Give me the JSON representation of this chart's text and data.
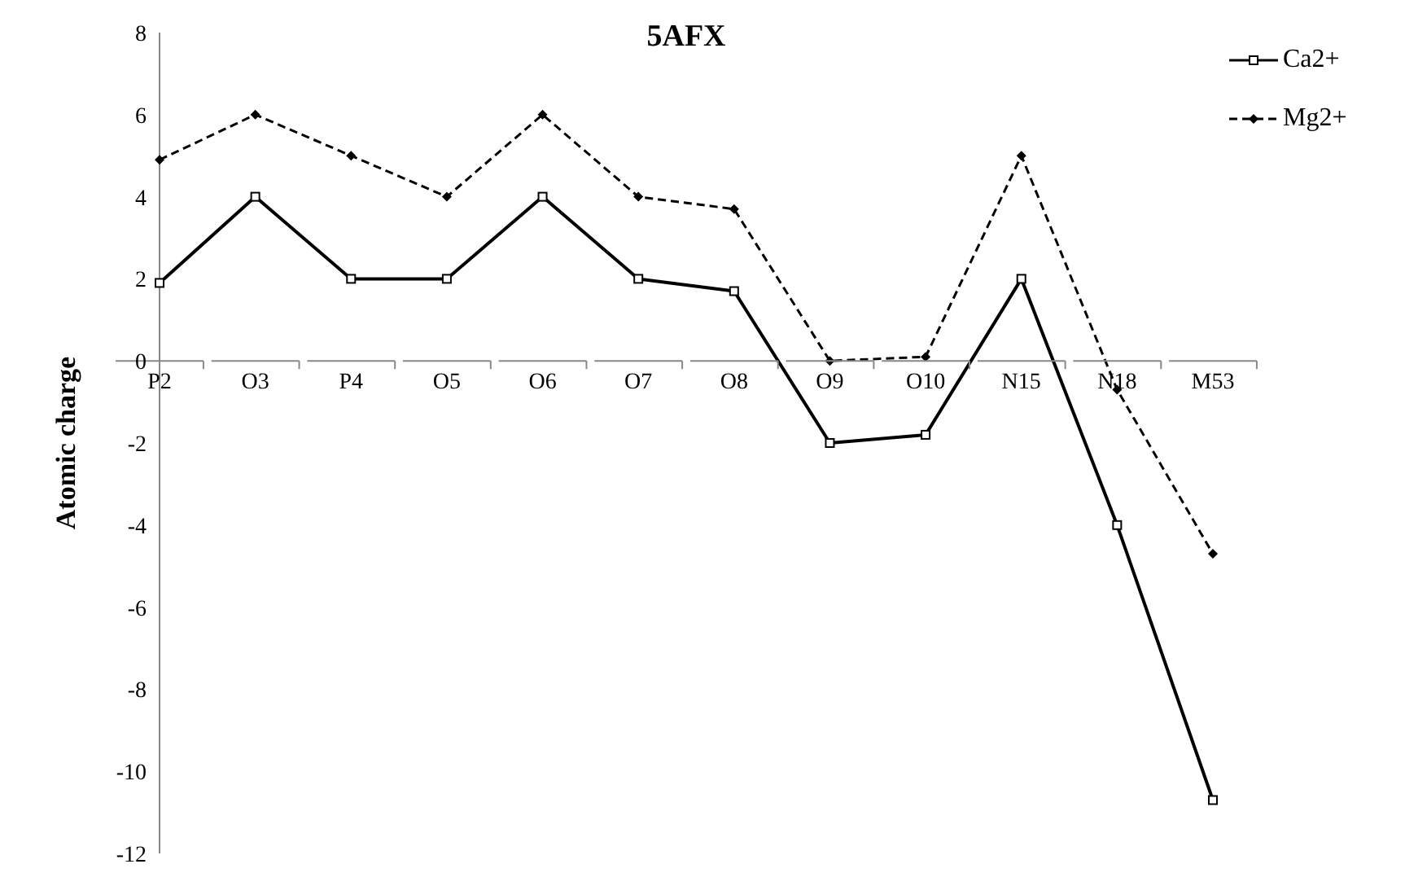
{
  "chart_data": {
    "type": "line",
    "title": "5AFX",
    "ylabel": "Atomic charge",
    "categories": [
      "P2",
      "O3",
      "P4",
      "O5",
      "O6",
      "O7",
      "O8",
      "O9",
      "O10",
      "N15",
      "N18",
      "M53"
    ],
    "series": [
      {
        "name": "Ca2+",
        "color": "#000000",
        "marker": "square",
        "line_style": "solid",
        "values": [
          1.9,
          4,
          2,
          2,
          4,
          2,
          1.7,
          -2,
          -1.8,
          2,
          -4,
          -10.7
        ]
      },
      {
        "name": "Mg2+",
        "color": "#000000",
        "marker": "diamond",
        "line_style": "dashed",
        "values": [
          4.9,
          6,
          5,
          4,
          6,
          4,
          3.7,
          0,
          0.1,
          5,
          -0.7,
          -4.7
        ]
      }
    ],
    "ylim": [
      -12,
      8
    ],
    "yticks": [
      -12,
      -10,
      -8,
      -6,
      -4,
      -2,
      0,
      2,
      4,
      6,
      8
    ],
    "grid": false,
    "legend": "top right"
  }
}
